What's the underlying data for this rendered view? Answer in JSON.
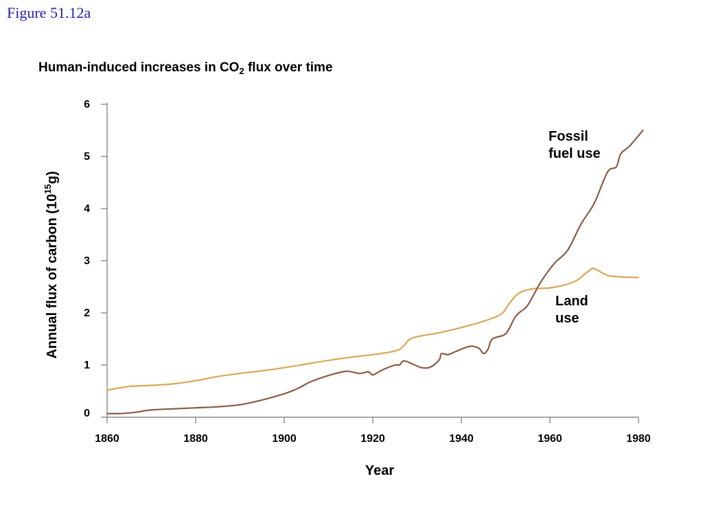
{
  "figure_label": "Figure 51.12a",
  "title": {
    "main": "Human-induced increases in CO",
    "sub": "2",
    "rest": " flux over time"
  },
  "colors": {
    "fossil": "#8b5a44",
    "land": "#dba558",
    "axis": "#777777"
  },
  "chart_data": {
    "type": "line",
    "title": "Human-induced increases in CO2 flux over time",
    "xlabel": "Year",
    "ylabel_main": "Annual flux of carbon (10",
    "ylabel_sup": "15",
    "ylabel_end": "g)",
    "xlim": [
      1860,
      1980
    ],
    "ylim": [
      0,
      6
    ],
    "xticks": [
      "1860",
      "1880",
      "1900",
      "1920",
      "1940",
      "1960",
      "1980"
    ],
    "yticks": [
      "0",
      "1",
      "2",
      "3",
      "4",
      "5",
      "6"
    ],
    "grid": false,
    "series": [
      {
        "key": "fossil",
        "name_lines": [
          "Fossil",
          "fuel use"
        ],
        "points": [
          [
            1860,
            0.07
          ],
          [
            1863,
            0.07
          ],
          [
            1866,
            0.09
          ],
          [
            1870,
            0.14
          ],
          [
            1875,
            0.16
          ],
          [
            1880,
            0.18
          ],
          [
            1885,
            0.2
          ],
          [
            1890,
            0.24
          ],
          [
            1895,
            0.33
          ],
          [
            1900,
            0.45
          ],
          [
            1903,
            0.55
          ],
          [
            1906,
            0.68
          ],
          [
            1910,
            0.8
          ],
          [
            1914,
            0.88
          ],
          [
            1917,
            0.84
          ],
          [
            1919,
            0.87
          ],
          [
            1920,
            0.81
          ],
          [
            1922,
            0.9
          ],
          [
            1925,
            1.0
          ],
          [
            1926,
            1.0
          ],
          [
            1927,
            1.08
          ],
          [
            1929,
            1.02
          ],
          [
            1931,
            0.95
          ],
          [
            1933,
            0.96
          ],
          [
            1935,
            1.1
          ],
          [
            1935.5,
            1.22
          ],
          [
            1937,
            1.2
          ],
          [
            1939,
            1.27
          ],
          [
            1942,
            1.36
          ],
          [
            1944,
            1.32
          ],
          [
            1945,
            1.22
          ],
          [
            1946,
            1.3
          ],
          [
            1947,
            1.5
          ],
          [
            1950,
            1.6
          ],
          [
            1952,
            1.9
          ],
          [
            1953,
            2.0
          ],
          [
            1955,
            2.15
          ],
          [
            1958,
            2.6
          ],
          [
            1961,
            2.95
          ],
          [
            1964,
            3.2
          ],
          [
            1967,
            3.7
          ],
          [
            1970,
            4.1
          ],
          [
            1973,
            4.7
          ],
          [
            1975,
            4.8
          ],
          [
            1976,
            5.05
          ],
          [
            1978,
            5.2
          ],
          [
            1981,
            5.5
          ]
        ]
      },
      {
        "key": "land",
        "name_lines": [
          "Land",
          "use"
        ],
        "points": [
          [
            1860,
            0.52
          ],
          [
            1865,
            0.59
          ],
          [
            1870,
            0.61
          ],
          [
            1875,
            0.64
          ],
          [
            1880,
            0.7
          ],
          [
            1885,
            0.78
          ],
          [
            1890,
            0.84
          ],
          [
            1895,
            0.89
          ],
          [
            1900,
            0.95
          ],
          [
            1905,
            1.02
          ],
          [
            1910,
            1.09
          ],
          [
            1915,
            1.15
          ],
          [
            1920,
            1.2
          ],
          [
            1924,
            1.25
          ],
          [
            1926,
            1.3
          ],
          [
            1927,
            1.37
          ],
          [
            1929,
            1.52
          ],
          [
            1935,
            1.62
          ],
          [
            1940,
            1.72
          ],
          [
            1945,
            1.84
          ],
          [
            1949,
            1.98
          ],
          [
            1951,
            2.2
          ],
          [
            1953,
            2.38
          ],
          [
            1956,
            2.46
          ],
          [
            1960,
            2.48
          ],
          [
            1963,
            2.53
          ],
          [
            1966,
            2.62
          ],
          [
            1969,
            2.82
          ],
          [
            1970,
            2.85
          ],
          [
            1973,
            2.72
          ],
          [
            1976,
            2.69
          ],
          [
            1980,
            2.68
          ]
        ]
      }
    ]
  }
}
